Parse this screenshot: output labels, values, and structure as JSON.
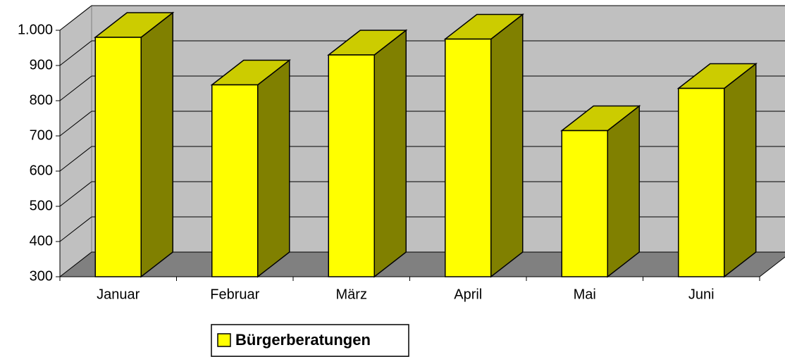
{
  "chart_data": {
    "type": "bar3d",
    "categories": [
      "Januar",
      "Februar",
      "März",
      "April",
      "Mai",
      "Juni"
    ],
    "series": [
      {
        "name": "Bürgerberatungen",
        "color": "#ffff00",
        "values": [
          980,
          845,
          930,
          975,
          715,
          835
        ]
      }
    ],
    "ylim": [
      300,
      1000
    ],
    "yticks": [
      300,
      400,
      500,
      600,
      700,
      800,
      900,
      {
        "value": 1000,
        "label": "1.000"
      }
    ],
    "grid": true,
    "legend": "bottom"
  }
}
